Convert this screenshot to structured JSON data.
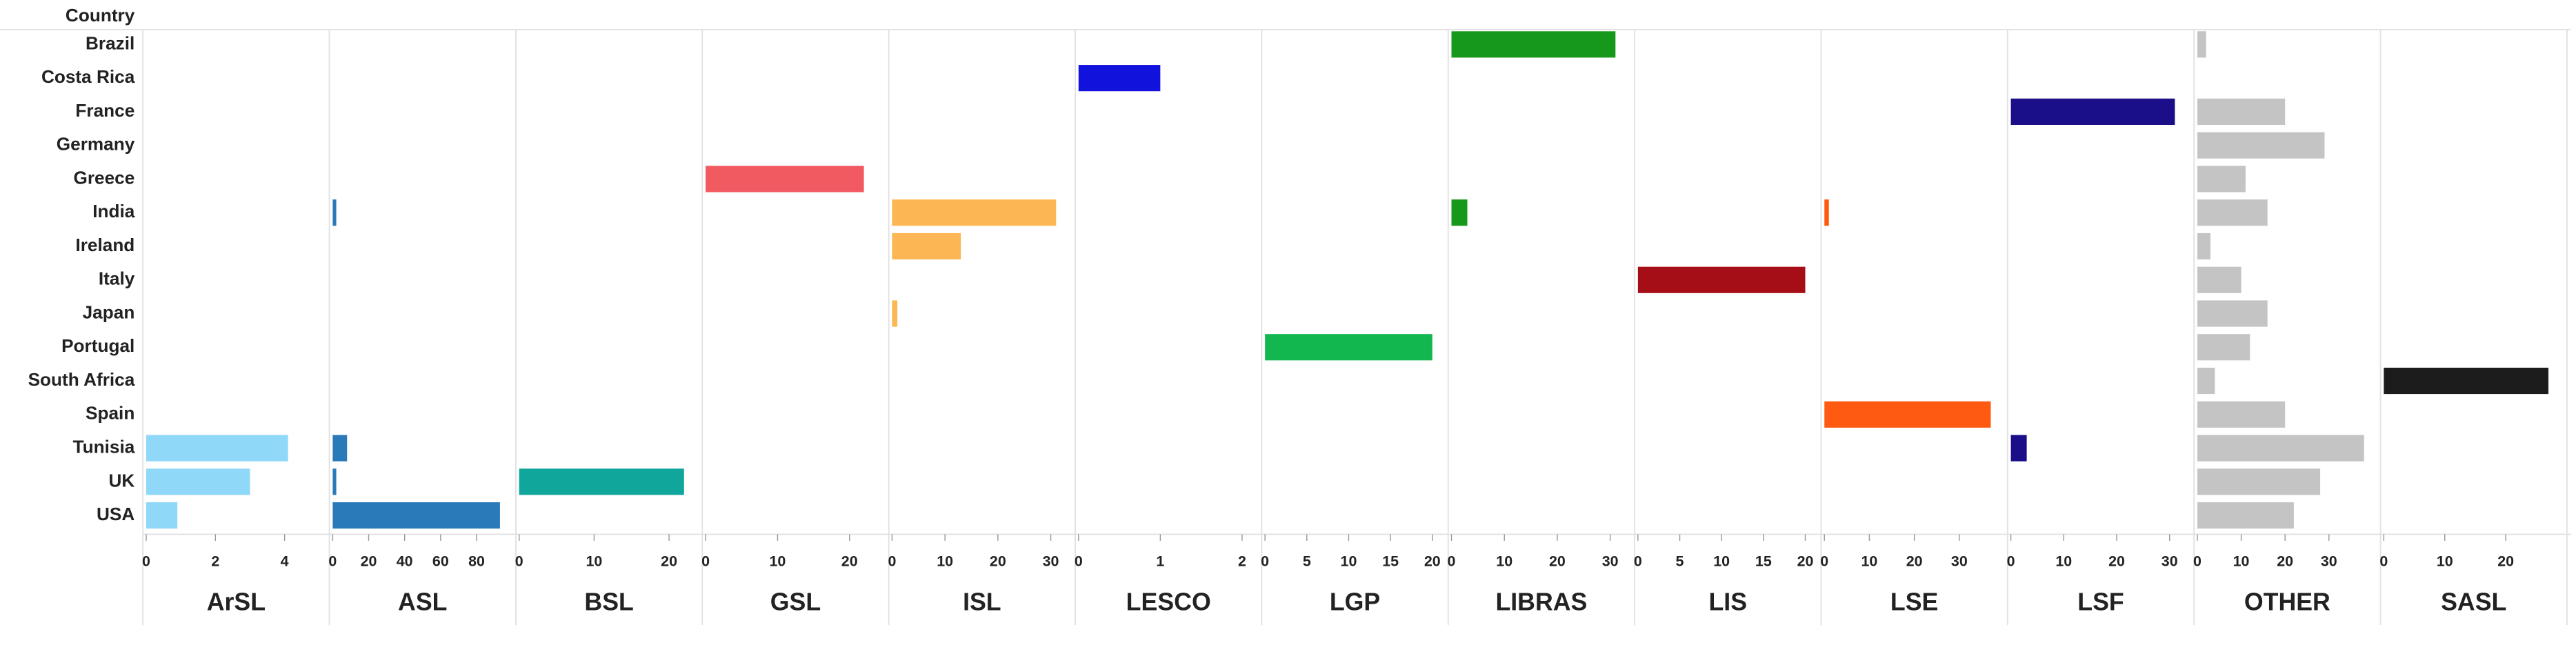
{
  "chart_data": {
    "type": "bar",
    "y_label": "Country",
    "categories": [
      "Brazil",
      "Costa Rica",
      "France",
      "Germany",
      "Greece",
      "India",
      "Ireland",
      "Italy",
      "Japan",
      "Portugal",
      "South Africa",
      "Spain",
      "Tunisia",
      "UK",
      "USA"
    ],
    "series": [
      {
        "name": "ArSL",
        "color": "#8fd8f8",
        "xlim": [
          0,
          5.2
        ],
        "xticks": [
          0,
          2,
          4
        ],
        "values": [
          null,
          null,
          null,
          null,
          null,
          null,
          null,
          null,
          null,
          null,
          null,
          null,
          4.1,
          3,
          0.9
        ]
      },
      {
        "name": "ASL",
        "color": "#2a7ab9",
        "xlim": [
          0,
          100
        ],
        "xticks": [
          0,
          20,
          40,
          60,
          80
        ],
        "values": [
          null,
          null,
          null,
          null,
          null,
          2,
          null,
          null,
          null,
          null,
          null,
          null,
          8,
          2,
          93
        ]
      },
      {
        "name": "BSL",
        "color": "#11a69c",
        "xlim": [
          0,
          24
        ],
        "xticks": [
          0,
          10,
          20
        ],
        "values": [
          null,
          null,
          null,
          null,
          null,
          null,
          null,
          null,
          null,
          null,
          null,
          null,
          null,
          22,
          null
        ]
      },
      {
        "name": "GSL",
        "color": "#f25a61",
        "xlim": [
          0,
          25
        ],
        "xticks": [
          0,
          10,
          20
        ],
        "values": [
          null,
          null,
          null,
          null,
          22,
          null,
          null,
          null,
          null,
          null,
          null,
          null,
          null,
          null,
          null
        ]
      },
      {
        "name": "ISL",
        "color": "#fdb654",
        "xlim": [
          0,
          34
        ],
        "xticks": [
          0,
          10,
          20,
          30
        ],
        "values": [
          null,
          null,
          null,
          null,
          null,
          31,
          13,
          null,
          1,
          null,
          null,
          null,
          null,
          null,
          null
        ]
      },
      {
        "name": "LESCO",
        "color": "#1212dd",
        "xlim": [
          0,
          2.2
        ],
        "xticks": [
          0,
          1,
          2
        ],
        "values": [
          null,
          1,
          null,
          null,
          null,
          null,
          null,
          null,
          null,
          null,
          null,
          null,
          null,
          null,
          null
        ]
      },
      {
        "name": "LGP",
        "color": "#12b84f",
        "xlim": [
          0,
          21.5
        ],
        "xticks": [
          0,
          5,
          10,
          15,
          20
        ],
        "values": [
          null,
          null,
          null,
          null,
          null,
          null,
          null,
          null,
          null,
          20,
          null,
          null,
          null,
          null,
          null
        ]
      },
      {
        "name": "LIBRAS",
        "color": "#16991a",
        "xlim": [
          0,
          34
        ],
        "xticks": [
          0,
          10,
          20,
          30
        ],
        "values": [
          31,
          null,
          null,
          null,
          null,
          3,
          null,
          null,
          null,
          null,
          null,
          null,
          null,
          null,
          null
        ]
      },
      {
        "name": "LIS",
        "color": "#a50e16",
        "xlim": [
          0,
          21.5
        ],
        "xticks": [
          0,
          5,
          10,
          15,
          20
        ],
        "values": [
          null,
          null,
          null,
          null,
          null,
          null,
          null,
          20,
          null,
          null,
          null,
          null,
          null,
          null,
          null
        ]
      },
      {
        "name": "LSE",
        "color": "#ff5a12",
        "xlim": [
          0,
          40
        ],
        "xticks": [
          0,
          10,
          20,
          30
        ],
        "values": [
          null,
          null,
          null,
          null,
          null,
          1,
          null,
          null,
          null,
          null,
          null,
          37,
          null,
          null,
          null
        ]
      },
      {
        "name": "LSF",
        "color": "#1a0f88",
        "xlim": [
          0,
          34
        ],
        "xticks": [
          0,
          10,
          20,
          30
        ],
        "values": [
          null,
          null,
          31,
          null,
          null,
          null,
          null,
          null,
          null,
          null,
          null,
          null,
          3,
          null,
          null
        ]
      },
      {
        "name": "OTHER",
        "color": "#c4c4c4",
        "xlim": [
          0,
          41
        ],
        "xticks": [
          0,
          10,
          20,
          30
        ],
        "values": [
          2,
          null,
          20,
          29,
          11,
          16,
          3,
          10,
          16,
          12,
          4,
          20,
          38,
          28,
          22
        ]
      },
      {
        "name": "SASL",
        "color": "#1c1c1c",
        "xlim": [
          0,
          29.5
        ],
        "xticks": [
          0,
          10,
          20
        ],
        "values": [
          null,
          null,
          null,
          null,
          null,
          null,
          null,
          null,
          null,
          null,
          27,
          null,
          null,
          null,
          null
        ]
      }
    ]
  }
}
